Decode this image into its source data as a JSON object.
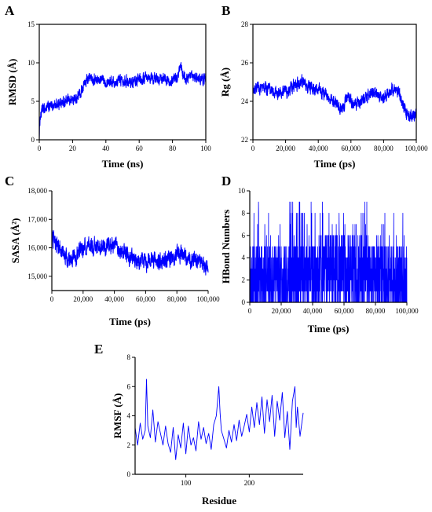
{
  "colors": {
    "series": "#0000ff",
    "axis": "#000000",
    "background": "#ffffff"
  },
  "chart_data": [
    {
      "id": "A",
      "type": "line",
      "panel_label": "A",
      "xlabel": "Time (ns)",
      "ylabel": "RMSD (Å)",
      "xlim": [
        0,
        100
      ],
      "ylim": [
        0,
        15
      ],
      "xticks": [
        0,
        20,
        40,
        60,
        80,
        100
      ],
      "yticks": [
        0,
        5,
        10,
        15
      ],
      "x_tick_labels": [
        "0",
        "20",
        "40",
        "60",
        "80",
        "100"
      ],
      "y_tick_labels": [
        "0",
        "5",
        "10",
        "15"
      ],
      "grid": false,
      "legend": "none",
      "series": [
        {
          "x": [
            0,
            0.5,
            2,
            5,
            8,
            10,
            12,
            15,
            18,
            20,
            22,
            24,
            25,
            26,
            28,
            30,
            35,
            40,
            45,
            50,
            55,
            60,
            65,
            70,
            75,
            80,
            83,
            85,
            86,
            88,
            90,
            95,
            100
          ],
          "y": [
            0.5,
            3.0,
            3.9,
            4.2,
            4.4,
            4.6,
            4.8,
            4.9,
            5.1,
            5.2,
            5.3,
            5.8,
            6.3,
            6.8,
            7.6,
            8.0,
            7.8,
            7.7,
            7.6,
            7.9,
            7.5,
            7.7,
            8.0,
            7.9,
            7.9,
            7.7,
            8.2,
            9.6,
            8.5,
            7.8,
            8.1,
            8.0,
            7.9
          ],
          "noise": 0.55,
          "spikes": 0
        }
      ]
    },
    {
      "id": "B",
      "type": "line",
      "panel_label": "B",
      "xlabel": "Time (ps)",
      "ylabel": "Rg (Å)",
      "xlim": [
        0,
        100000
      ],
      "ylim": [
        22,
        28
      ],
      "xticks": [
        0,
        20000,
        40000,
        60000,
        80000,
        100000
      ],
      "yticks": [
        22,
        24,
        26,
        28
      ],
      "x_tick_labels": [
        "0",
        "20,000",
        "40,000",
        "60,000",
        "80,000",
        "100,000"
      ],
      "y_tick_labels": [
        "22",
        "24",
        "26",
        "28"
      ],
      "grid": false,
      "legend": "none",
      "series": [
        {
          "x": [
            0,
            5000,
            10000,
            15000,
            20000,
            25000,
            30000,
            35000,
            40000,
            45000,
            50000,
            53000,
            55000,
            58000,
            60000,
            65000,
            70000,
            75000,
            80000,
            85000,
            88000,
            90000,
            92000,
            94000,
            96000,
            98000,
            100000
          ],
          "y": [
            24.5,
            24.7,
            24.6,
            24.4,
            24.5,
            24.8,
            25.0,
            24.7,
            24.6,
            24.3,
            24.0,
            23.6,
            23.7,
            24.3,
            24.0,
            23.9,
            24.3,
            24.4,
            24.2,
            24.6,
            24.5,
            24.3,
            23.8,
            23.4,
            23.3,
            23.2,
            23.3
          ],
          "noise": 0.25,
          "spikes": 0
        }
      ]
    },
    {
      "id": "C",
      "type": "line",
      "panel_label": "C",
      "xlabel": "Time (ps)",
      "ylabel": "SASA (Å²)",
      "xlim": [
        0,
        100000
      ],
      "ylim": [
        14500,
        18000
      ],
      "xticks": [
        0,
        20000,
        40000,
        60000,
        80000,
        100000
      ],
      "yticks": [
        15000,
        16000,
        17000,
        18000
      ],
      "x_tick_labels": [
        "0",
        "20,000",
        "40,000",
        "60,000",
        "80,000",
        "100,000"
      ],
      "y_tick_labels": [
        "15,000",
        "16,000",
        "17,000",
        "18,000"
      ],
      "grid": false,
      "legend": "none",
      "series": [
        {
          "x": [
            0,
            2000,
            5000,
            10000,
            15000,
            20000,
            25000,
            30000,
            35000,
            40000,
            45000,
            50000,
            55000,
            60000,
            65000,
            70000,
            75000,
            80000,
            85000,
            90000,
            95000,
            100000
          ],
          "y": [
            16500,
            16100,
            16000,
            15600,
            15700,
            16000,
            16100,
            16000,
            16000,
            16100,
            15900,
            15600,
            15500,
            15500,
            15600,
            15500,
            15600,
            15800,
            15700,
            15600,
            15500,
            15300
          ],
          "noise": 220,
          "spikes": 0
        }
      ]
    },
    {
      "id": "D",
      "type": "line",
      "panel_label": "D",
      "xlabel": "Time (ps)",
      "ylabel": "HBond Numbers",
      "xlim": [
        0,
        100000
      ],
      "ylim": [
        0,
        10
      ],
      "xticks": [
        0,
        20000,
        40000,
        60000,
        80000,
        100000
      ],
      "yticks": [
        0,
        2,
        4,
        6,
        8,
        10
      ],
      "x_tick_labels": [
        "0",
        "20,000",
        "40,000",
        "60,000",
        "80,000",
        "100,000"
      ],
      "y_tick_labels": [
        "0",
        "2",
        "4",
        "6",
        "8",
        "10"
      ],
      "grid": false,
      "legend": "none",
      "series": [
        {
          "x": [
            0,
            20000,
            40000,
            50000,
            60000,
            65000,
            70000,
            80000,
            90000,
            100000
          ],
          "y": [
            2.0,
            2.2,
            2.5,
            3.0,
            3.2,
            3.0,
            2.6,
            2.4,
            2.0,
            1.8
          ],
          "noise": 2.0,
          "spikes": 1,
          "integer_steps": true
        }
      ]
    },
    {
      "id": "E",
      "type": "line",
      "panel_label": "E",
      "xlabel": "Residue",
      "ylabel": "RMSF (Å)",
      "xlim": [
        20,
        285
      ],
      "ylim": [
        0,
        8
      ],
      "xticks": [
        100,
        200
      ],
      "yticks": [
        0,
        2,
        4,
        6,
        8
      ],
      "x_tick_labels": [
        "100",
        "200"
      ],
      "y_tick_labels": [
        "0",
        "2",
        "4",
        "6",
        "8"
      ],
      "grid": false,
      "legend": "none",
      "series": [
        {
          "x": [
            20,
            24,
            28,
            32,
            36,
            38,
            40,
            44,
            48,
            52,
            56,
            60,
            64,
            68,
            72,
            76,
            80,
            84,
            88,
            92,
            96,
            100,
            104,
            108,
            112,
            116,
            120,
            124,
            128,
            132,
            136,
            140,
            144,
            148,
            152,
            154,
            156,
            160,
            164,
            168,
            172,
            176,
            180,
            184,
            188,
            192,
            196,
            200,
            204,
            208,
            212,
            216,
            220,
            224,
            228,
            232,
            236,
            240,
            244,
            248,
            252,
            256,
            260,
            264,
            268,
            272,
            274,
            276,
            280,
            285
          ],
          "y": [
            3.2,
            2.0,
            3.5,
            2.4,
            3.0,
            6.5,
            3.3,
            2.5,
            4.4,
            2.2,
            3.6,
            2.8,
            2.0,
            3.3,
            2.1,
            1.5,
            3.2,
            1.0,
            2.7,
            1.8,
            3.5,
            1.4,
            3.3,
            2.0,
            2.5,
            1.6,
            3.6,
            2.4,
            3.2,
            2.1,
            2.8,
            1.7,
            3.4,
            4.0,
            6.0,
            4.2,
            3.0,
            2.4,
            1.8,
            3.0,
            2.2,
            3.4,
            2.3,
            3.7,
            2.6,
            3.3,
            4.1,
            2.9,
            4.6,
            3.2,
            4.9,
            3.4,
            5.3,
            2.8,
            5.1,
            3.6,
            5.4,
            2.6,
            5.0,
            3.7,
            5.6,
            2.5,
            4.3,
            1.7,
            5.0,
            6.0,
            3.2,
            4.6,
            2.6,
            4.2
          ],
          "noise": 0,
          "spikes": 0
        }
      ]
    }
  ]
}
